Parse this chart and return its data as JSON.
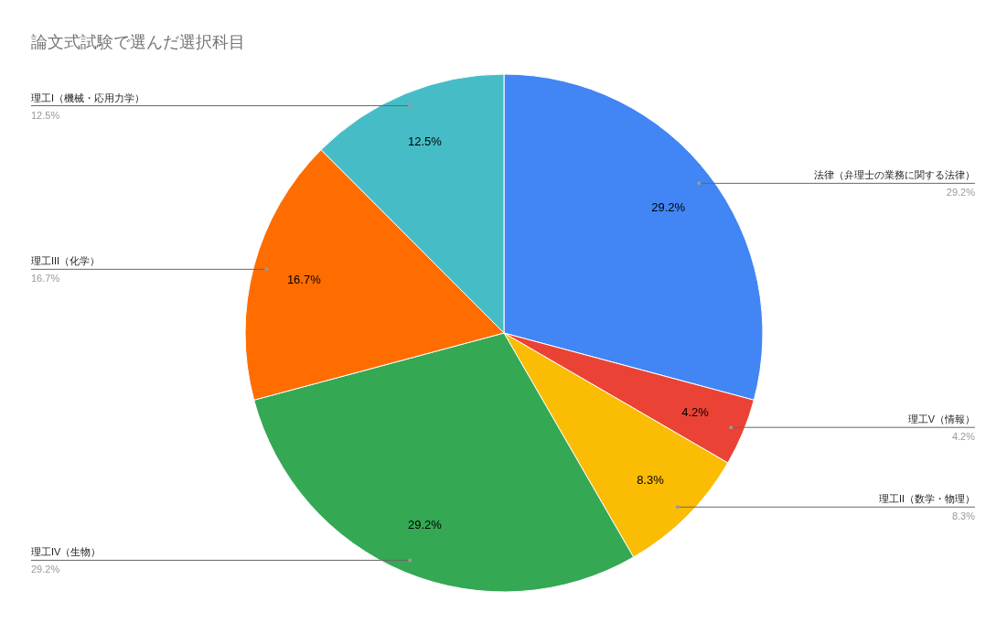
{
  "chart_data": {
    "type": "pie",
    "title": "論文式試験で選んだ選択科目",
    "categories": [
      "法律（弁理士の業務に関する法律）",
      "理工V（情報）",
      "理工II（数学・物理）",
      "理工IV（生物）",
      "理工III（化学）",
      "理工I（機械・応用力学）"
    ],
    "values": [
      29.2,
      4.2,
      8.3,
      29.2,
      16.7,
      12.5
    ],
    "colors": [
      "#4285f4",
      "#ea4335",
      "#fbbc04",
      "#34a853",
      "#ff6d01",
      "#46bdc6"
    ],
    "value_labels": [
      "29.2%",
      "4.2%",
      "8.3%",
      "29.2%",
      "16.7%",
      "12.5%"
    ]
  }
}
